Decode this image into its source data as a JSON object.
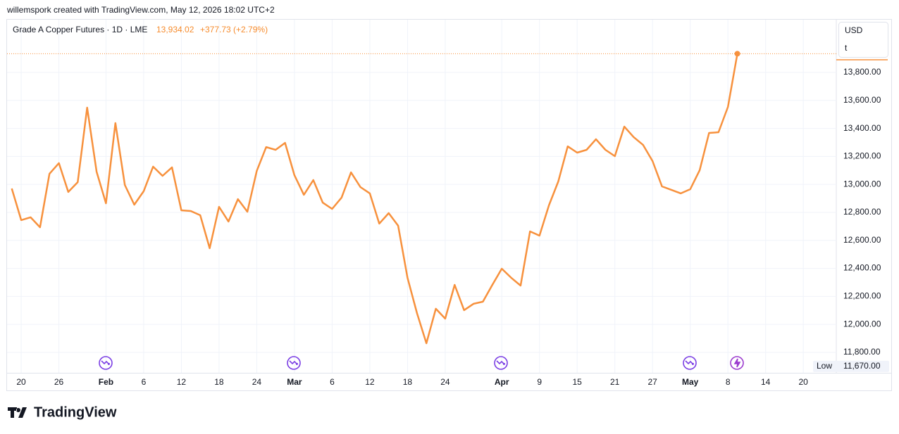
{
  "header": {
    "credit": "willemspork created with TradingView.com, May 12, 2026 18:02 UTC+2",
    "symbol": "Grade A Copper Futures · 1D · LME",
    "last": "13,934.02",
    "change": "+377.73 (+2.79%)"
  },
  "chart_data": {
    "type": "line",
    "categories": [
      null,
      "20",
      null,
      null,
      null,
      "26",
      null,
      null,
      null,
      null,
      "Feb",
      null,
      null,
      null,
      "6",
      null,
      null,
      null,
      "12",
      null,
      null,
      null,
      "18",
      null,
      null,
      null,
      "24",
      null,
      null,
      null,
      "Mar",
      null,
      null,
      null,
      "6",
      null,
      null,
      null,
      "12",
      null,
      null,
      null,
      "18",
      null,
      null,
      null,
      "24",
      null,
      null,
      null,
      null,
      null,
      "Apr",
      null,
      null,
      null,
      "9",
      null,
      null,
      null,
      "15",
      null,
      null,
      null,
      "21",
      null,
      null,
      null,
      "27",
      null,
      null,
      null,
      "May",
      null,
      null,
      null,
      "8",
      null,
      null,
      null,
      "14",
      null,
      null,
      null,
      "20",
      null,
      null,
      null
    ],
    "series": [
      {
        "name": "Grade A Copper Futures",
        "color": "#f7913d",
        "values": [
          12971,
          12745,
          12765,
          12694,
          13076,
          13152,
          12946,
          13016,
          13549,
          13091,
          12865,
          13438,
          12996,
          12855,
          12951,
          13127,
          13061,
          13122,
          12815,
          12810,
          12780,
          12544,
          12840,
          12735,
          12895,
          12805,
          13096,
          13267,
          13247,
          13297,
          13066,
          12926,
          13031,
          12870,
          12825,
          12906,
          13086,
          12981,
          12936,
          12720,
          12795,
          12705,
          12333,
          12081,
          11865,
          12112,
          12041,
          12282,
          12102,
          12147,
          12162,
          12282,
          12398,
          12333,
          12277,
          12664,
          12634,
          12850,
          13021,
          13272,
          13227,
          13247,
          13323,
          13247,
          13202,
          13413,
          13338,
          13282,
          13167,
          12986,
          12961,
          12936,
          12966,
          13102,
          13368,
          13373,
          13554,
          13934.02,
          null,
          null,
          null,
          null,
          null,
          null,
          null,
          null,
          null,
          null
        ]
      }
    ],
    "ylim": [
      11654,
      14177
    ],
    "yticks": [
      {
        "value": 11800,
        "label": "11,800.00"
      },
      {
        "value": 12000,
        "label": "12,000.00"
      },
      {
        "value": 12200,
        "label": "12,200.00"
      },
      {
        "value": 12400,
        "label": "12,400.00"
      },
      {
        "value": 12600,
        "label": "12,600.00"
      },
      {
        "value": 12800,
        "label": "12,800.00"
      },
      {
        "value": 13000,
        "label": "13,000.00"
      },
      {
        "value": 13200,
        "label": "13,200.00"
      },
      {
        "value": 13400,
        "label": "13,400.00"
      },
      {
        "value": 13600,
        "label": "13,600.00"
      },
      {
        "value": 13800,
        "label": "13,800.00"
      }
    ],
    "grid": true,
    "currency": "USD",
    "unit": "t",
    "low_label": "Low",
    "low": {
      "value": 11670,
      "label": "11,670.00"
    }
  },
  "footer": {
    "logo": "TradingView"
  }
}
